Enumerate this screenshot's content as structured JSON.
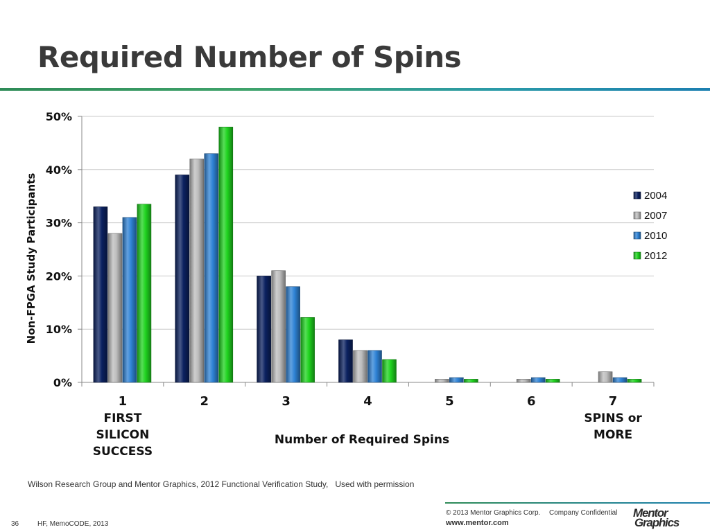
{
  "title": "Required Number of Spins",
  "chart_data": {
    "type": "bar",
    "categories": [
      "1",
      "2",
      "3",
      "4",
      "5",
      "6",
      "7"
    ],
    "category_sublabels": [
      "FIRST SILICON SUCCESS",
      "",
      "",
      "",
      "",
      "",
      "SPINS or MORE"
    ],
    "series": [
      {
        "name": "2004",
        "values": [
          33,
          39,
          20,
          8,
          0,
          0,
          0
        ],
        "color": "#0b2160"
      },
      {
        "name": "2007",
        "values": [
          28,
          42,
          21,
          6,
          0.6,
          0.6,
          2
        ],
        "color": "#bdbdbd"
      },
      {
        "name": "2010",
        "values": [
          31,
          43,
          18,
          6,
          0.9,
          0.9,
          0.9
        ],
        "color": "#2f83d6"
      },
      {
        "name": "2012",
        "values": [
          33.5,
          48,
          12.2,
          4.3,
          0.6,
          0.6,
          0.6
        ],
        "color": "#1fd31f"
      }
    ],
    "xlabel": "Number of Required Spins",
    "ylabel": "Non-FPGA Study Participants",
    "ylim": [
      0,
      50
    ],
    "yticks": [
      "0%",
      "10%",
      "20%",
      "30%",
      "40%",
      "50%"
    ],
    "grid": true,
    "legend_position": "right"
  },
  "source_note": "Wilson Research Group and Mentor Graphics, 2012 Functional Verification Study,   Used with permission",
  "footer": {
    "copyright": "© 2013 Mentor Graphics Corp.",
    "confidential": "Company Confidential",
    "url": "www.mentor.com",
    "slide_number": "36",
    "event": "HF, MemoCODE, 2013",
    "logo_line1": "Mentor",
    "logo_line2": "Graphics"
  }
}
